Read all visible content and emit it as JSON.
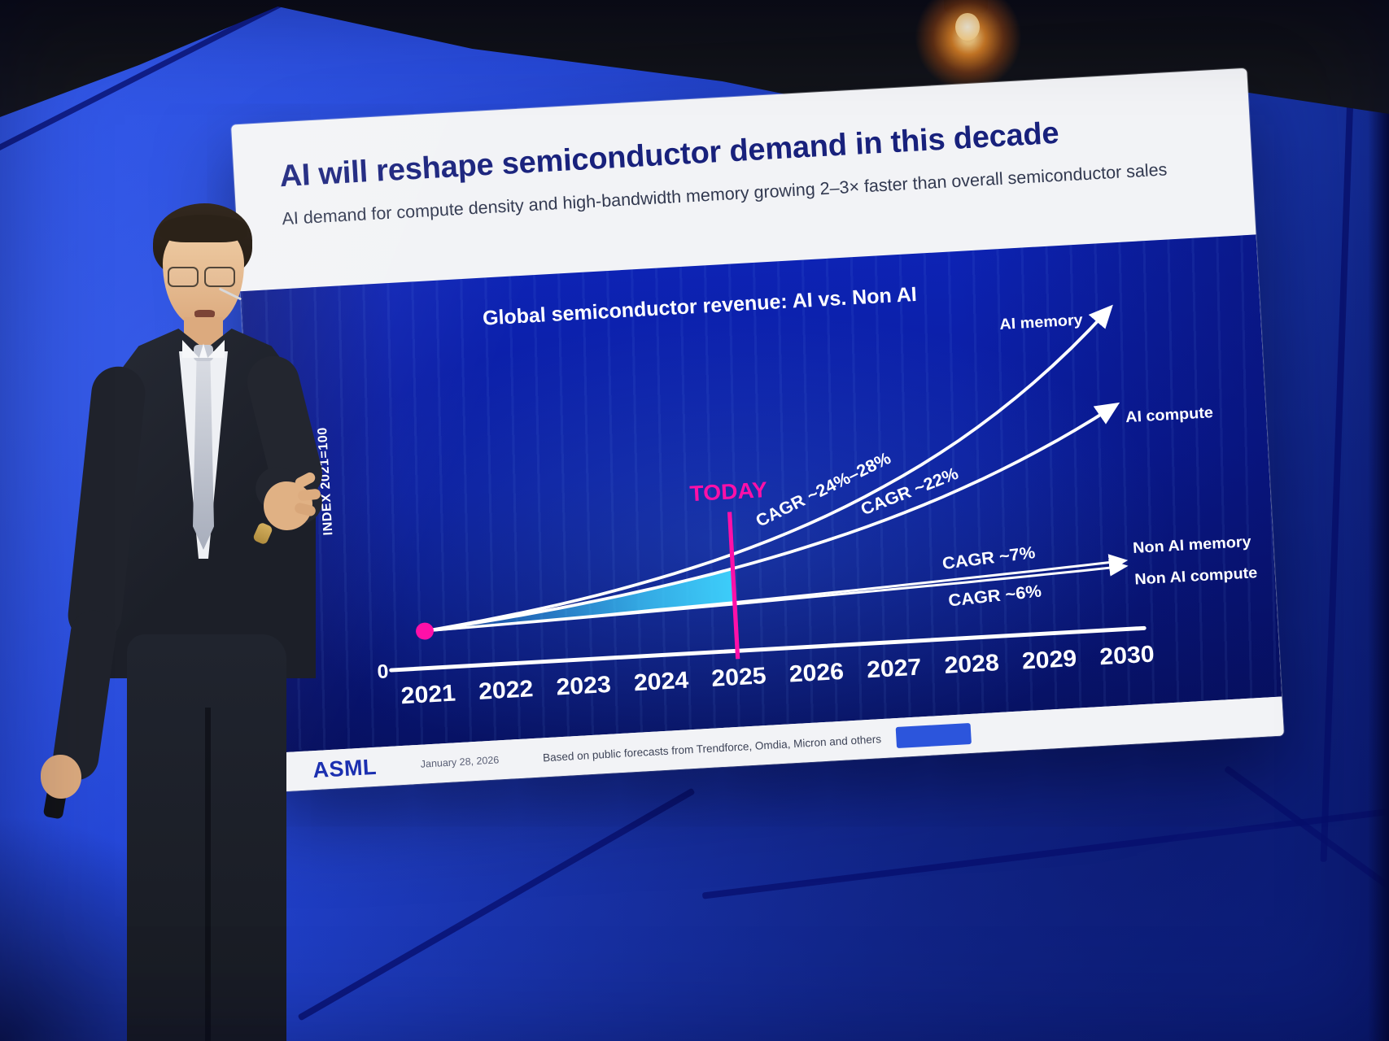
{
  "scene": {
    "description": "Presenter on stage in front of a large ASML presentation screen",
    "colors": {
      "backdrop_blue": "#2345d6",
      "ceiling": "#14161c",
      "spotlight": "#ff9a2e",
      "slide_bg": "#f2f3f6",
      "title_navy": "#18217c",
      "chart_bg": "#0a1c9c",
      "magenta": "#ff10a8",
      "cyan": "#3fd6ff",
      "white": "#ffffff"
    }
  },
  "slide": {
    "title": "AI will reshape semiconductor demand in this decade",
    "subtitle": "AI demand for compute density and high-bandwidth memory growing 2–3× faster than overall semiconductor sales",
    "footer": {
      "logo": "ASML",
      "date": "January 28, 2026",
      "source": "Based on public forecasts from Trendforce, Omdia, Micron and others"
    }
  },
  "chart_data": {
    "type": "line",
    "title": "Global semiconductor revenue: AI vs. Non AI",
    "ylabel": "INDEX 2021=100",
    "origin_tick": "0",
    "x": [
      2021,
      2022,
      2023,
      2024,
      2025,
      2026,
      2027,
      2028,
      2029,
      2030
    ],
    "ylim": [
      0,
      950
    ],
    "grid": false,
    "legend_position": "right-of-lines",
    "today": {
      "label": "TODAY",
      "x": 2025
    },
    "start_marker": {
      "x": 2021,
      "value": 100
    },
    "series": [
      {
        "name": "AI memory",
        "cagr_label": "CAGR ~24%–28%",
        "values": [
          100,
          127,
          161,
          205,
          260,
          330,
          420,
          533,
          677,
          860
        ]
      },
      {
        "name": "AI compute",
        "cagr_label": "CAGR ~22%",
        "values": [
          100,
          122,
          149,
          182,
          222,
          271,
          330,
          403,
          492,
          600
        ]
      },
      {
        "name": "Non AI memory",
        "cagr_label": "CAGR ~7%",
        "values": [
          100,
          107,
          114,
          123,
          131,
          140,
          150,
          161,
          172,
          184
        ]
      },
      {
        "name": "Non AI compute",
        "cagr_label": "CAGR ~6%",
        "values": [
          100,
          106,
          112,
          119,
          126,
          134,
          142,
          150,
          159,
          169
        ]
      }
    ]
  }
}
